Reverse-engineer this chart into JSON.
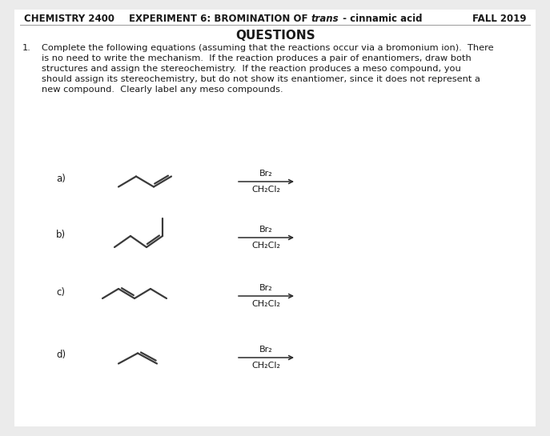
{
  "title_left": "CHEMISTRY 2400",
  "title_center_normal": "EXPERIMENT 6: BROMINATION OF ",
  "title_italic": "trans",
  "title_center_normal2": " - cinnamic acid",
  "title_right": "FALL 2019",
  "section_title": "QUESTIONS",
  "question_number": "1.",
  "question_lines": [
    "Complete the following equations (assuming that the reactions occur via a bromonium ion).  There",
    "is no need to write the mechanism.  If the reaction produces a pair of enantiomers, draw both",
    "structures and assign the stereochemistry.  If the reaction produces a meso compound, you",
    "should assign its stereochemistry, but do not show its enantiomer, since it does not represent a",
    "new compound.  Clearly label any meso compounds."
  ],
  "labels": [
    "a)",
    "b)",
    "c)",
    "d)"
  ],
  "reagent_top": "Br₂",
  "reagent_bottom": "CH₂Cl₂",
  "bg_color": "#ebebeb",
  "white": "#ffffff",
  "text_color": "#1a1a1a",
  "struct_color": "#3a3a3a",
  "arrow_color": "#2a2a2a",
  "rule_color": "#999999"
}
